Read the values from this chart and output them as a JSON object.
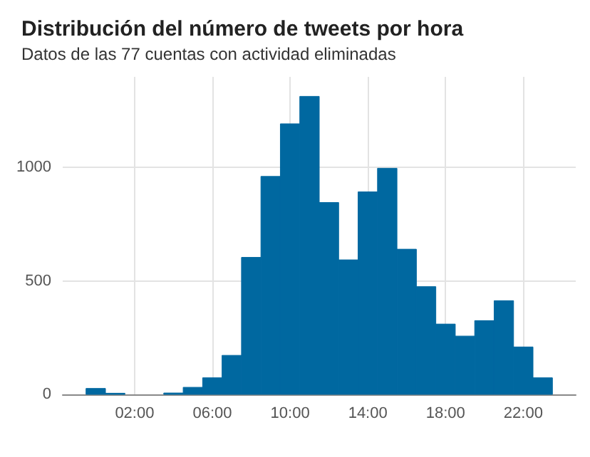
{
  "chart_data": {
    "type": "histogram",
    "title": "Distribución del número de tweets por hora",
    "subtitle": "Datos de las 77 cuentas con actividad eliminadas",
    "bins": [
      -0.5,
      0.5,
      1.5,
      2.5,
      3.5,
      4.5,
      5.5,
      6.5,
      7.5,
      8.5,
      9.5,
      10.5,
      11.5,
      12.5,
      13.5,
      14.5,
      15.5,
      16.5,
      17.5,
      18.5,
      19.5,
      20.5,
      21.5,
      22.5,
      23.5
    ],
    "values": [
      26,
      5,
      null,
      null,
      6,
      31,
      73,
      172,
      604,
      961,
      1193,
      1314,
      846,
      593,
      893,
      997,
      640,
      475,
      310,
      257,
      325,
      413,
      209,
      73
    ],
    "color": "#0068a0",
    "xlim": [
      -1.7,
      24.7
    ],
    "xticks": [
      {
        "value": 2,
        "label": "02:00"
      },
      {
        "value": 6,
        "label": "06:00"
      },
      {
        "value": 10,
        "label": "10:00"
      },
      {
        "value": 14,
        "label": "14:00"
      },
      {
        "value": 18,
        "label": "18:00"
      },
      {
        "value": 22,
        "label": "22:00"
      }
    ],
    "ylim": [
      0,
      1400
    ],
    "yticks": [
      0,
      500,
      1000
    ],
    "grid": true
  }
}
